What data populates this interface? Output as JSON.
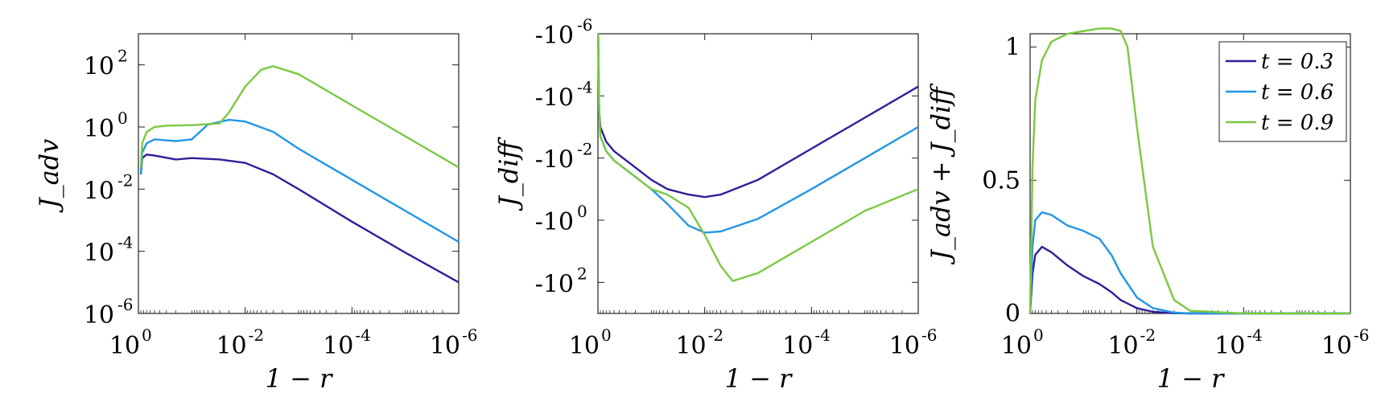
{
  "series_colors": {
    "t03": "#2e1f9a",
    "t06": "#2196e6",
    "t09": "#7ac943"
  },
  "legend": [
    "t = 0.3",
    "t = 0.6",
    "t = 0.9"
  ],
  "chart_data": [
    {
      "type": "line",
      "xlabel": "1 − r",
      "ylabel": "J_adv",
      "xscale": "log_reversed",
      "yscale": "log",
      "xlim": [
        1,
        1e-06
      ],
      "ylim": [
        1e-06,
        1000
      ],
      "x_ticks": [
        {
          "base": "10",
          "exp": "0"
        },
        {
          "base": "10",
          "exp": "-2"
        },
        {
          "base": "10",
          "exp": "-4"
        },
        {
          "base": "10",
          "exp": "-6"
        }
      ],
      "y_ticks": [
        {
          "base": "10",
          "exp": "2"
        },
        {
          "base": "10",
          "exp": "0"
        },
        {
          "base": "10",
          "exp": "-2"
        },
        {
          "base": "10",
          "exp": "-4"
        },
        {
          "base": "10",
          "exp": "-6"
        }
      ],
      "series": [
        {
          "name": "t = 0.3",
          "x": [
            0.9,
            0.85,
            0.7,
            0.5,
            0.2,
            0.1,
            0.03,
            0.01,
            0.003,
            0.001,
            0.0001,
            1e-05,
            1e-06
          ],
          "y": [
            0.03,
            0.1,
            0.13,
            0.12,
            0.09,
            0.1,
            0.09,
            0.07,
            0.03,
            0.01,
            0.0009,
            9e-05,
            1e-05
          ]
        },
        {
          "name": "t = 0.6",
          "x": [
            0.9,
            0.85,
            0.7,
            0.5,
            0.2,
            0.1,
            0.05,
            0.02,
            0.01,
            0.003,
            0.001,
            0.0001,
            1e-05,
            1e-06
          ],
          "y": [
            0.03,
            0.15,
            0.3,
            0.4,
            0.35,
            0.4,
            1.2,
            1.7,
            1.5,
            0.7,
            0.2,
            0.02,
            0.002,
            0.0002
          ]
        },
        {
          "name": "t = 0.9",
          "x": [
            0.9,
            0.85,
            0.7,
            0.5,
            0.3,
            0.1,
            0.03,
            0.02,
            0.01,
            0.005,
            0.003,
            0.001,
            0.0001,
            1e-05,
            1e-06
          ],
          "y": [
            0.05,
            0.3,
            0.7,
            1,
            1.1,
            1.15,
            1.3,
            3,
            20,
            70,
            90,
            50,
            5,
            0.5,
            0.05
          ]
        }
      ]
    },
    {
      "type": "line",
      "xlabel": "1 − r",
      "ylabel": "J_diff",
      "xscale": "log_reversed",
      "yscale": "neg_log",
      "xlim": [
        1,
        1e-06
      ],
      "ylim": [
        -1e-06,
        -1000
      ],
      "x_ticks": [
        {
          "base": "10",
          "exp": "0"
        },
        {
          "base": "10",
          "exp": "-2"
        },
        {
          "base": "10",
          "exp": "-4"
        },
        {
          "base": "10",
          "exp": "-6"
        }
      ],
      "y_ticks": [
        {
          "base": "-10",
          "exp": "-6"
        },
        {
          "base": "-10",
          "exp": "-4"
        },
        {
          "base": "-10",
          "exp": "-2"
        },
        {
          "base": "-10",
          "exp": "0"
        },
        {
          "base": "-10",
          "exp": "2"
        }
      ],
      "series": [
        {
          "name": "t = 0.3",
          "x": [
            0.99,
            0.95,
            0.9,
            0.7,
            0.5,
            0.2,
            0.1,
            0.05,
            0.02,
            0.01,
            0.005,
            0.001,
            0.0001,
            1e-05,
            1e-06
          ],
          "y": [
            -1e-06,
            -0.0003,
            -0.001,
            -0.003,
            -0.006,
            -0.02,
            -0.05,
            -0.1,
            -0.15,
            -0.18,
            -0.15,
            -0.05,
            -0.005,
            -0.0005,
            -5e-05
          ]
        },
        {
          "name": "t = 0.6",
          "x": [
            0.99,
            0.95,
            0.9,
            0.7,
            0.5,
            0.2,
            0.1,
            0.05,
            0.02,
            0.01,
            0.005,
            0.001,
            0.0001,
            1e-05,
            1e-06
          ],
          "y": [
            -1e-06,
            -0.0003,
            -0.002,
            -0.006,
            -0.012,
            -0.04,
            -0.1,
            -0.3,
            -1.5,
            -2.5,
            -2.3,
            -0.9,
            -0.1,
            -0.01,
            -0.001
          ]
        },
        {
          "name": "t = 0.9",
          "x": [
            0.99,
            0.95,
            0.9,
            0.7,
            0.5,
            0.2,
            0.1,
            0.05,
            0.02,
            0.01,
            0.005,
            0.003,
            0.001,
            0.0001,
            1e-05,
            1e-06
          ],
          "y": [
            -1e-06,
            -0.0003,
            -0.002,
            -0.006,
            -0.012,
            -0.04,
            -0.1,
            -0.15,
            -0.4,
            -3,
            -30,
            -90,
            -50,
            -5,
            -0.5,
            -0.1
          ]
        }
      ]
    },
    {
      "type": "line",
      "xlabel": "1 − r",
      "ylabel": "J_adv + J_diff",
      "xscale": "log_reversed",
      "yscale": "linear",
      "xlim": [
        1,
        1e-06
      ],
      "ylim": [
        0,
        1.05
      ],
      "x_ticks": [
        {
          "base": "10",
          "exp": "0"
        },
        {
          "base": "10",
          "exp": "-2"
        },
        {
          "base": "10",
          "exp": "-4"
        },
        {
          "base": "10",
          "exp": "-6"
        }
      ],
      "y_ticks": [
        {
          "base": "0",
          "exp": ""
        },
        {
          "base": "0.5",
          "exp": ""
        },
        {
          "base": "1",
          "exp": ""
        }
      ],
      "series": [
        {
          "name": "t = 0.3",
          "x": [
            1,
            0.9,
            0.8,
            0.6,
            0.4,
            0.2,
            0.1,
            0.05,
            0.03,
            0.02,
            0.01,
            0.005,
            0.002,
            0.001,
            0.0001,
            1e-06
          ],
          "y": [
            0,
            0.15,
            0.22,
            0.25,
            0.23,
            0.18,
            0.14,
            0.11,
            0.08,
            0.05,
            0.02,
            0.006,
            0.001,
            0,
            0,
            0
          ]
        },
        {
          "name": "t = 0.6",
          "x": [
            1,
            0.9,
            0.8,
            0.6,
            0.4,
            0.2,
            0.1,
            0.05,
            0.03,
            0.02,
            0.01,
            0.005,
            0.002,
            0.001,
            0.0001,
            1e-06
          ],
          "y": [
            0,
            0.25,
            0.35,
            0.38,
            0.37,
            0.33,
            0.31,
            0.28,
            0.22,
            0.15,
            0.06,
            0.02,
            0.003,
            0,
            0,
            0
          ]
        },
        {
          "name": "t = 0.9",
          "x": [
            1,
            0.9,
            0.8,
            0.6,
            0.4,
            0.2,
            0.1,
            0.05,
            0.03,
            0.02,
            0.015,
            0.01,
            0.005,
            0.002,
            0.001,
            0.0001,
            1e-06
          ],
          "y": [
            0,
            0.55,
            0.8,
            0.95,
            1.02,
            1.05,
            1.06,
            1.07,
            1.07,
            1.06,
            1.0,
            0.7,
            0.25,
            0.05,
            0.01,
            0,
            0
          ]
        }
      ]
    }
  ]
}
